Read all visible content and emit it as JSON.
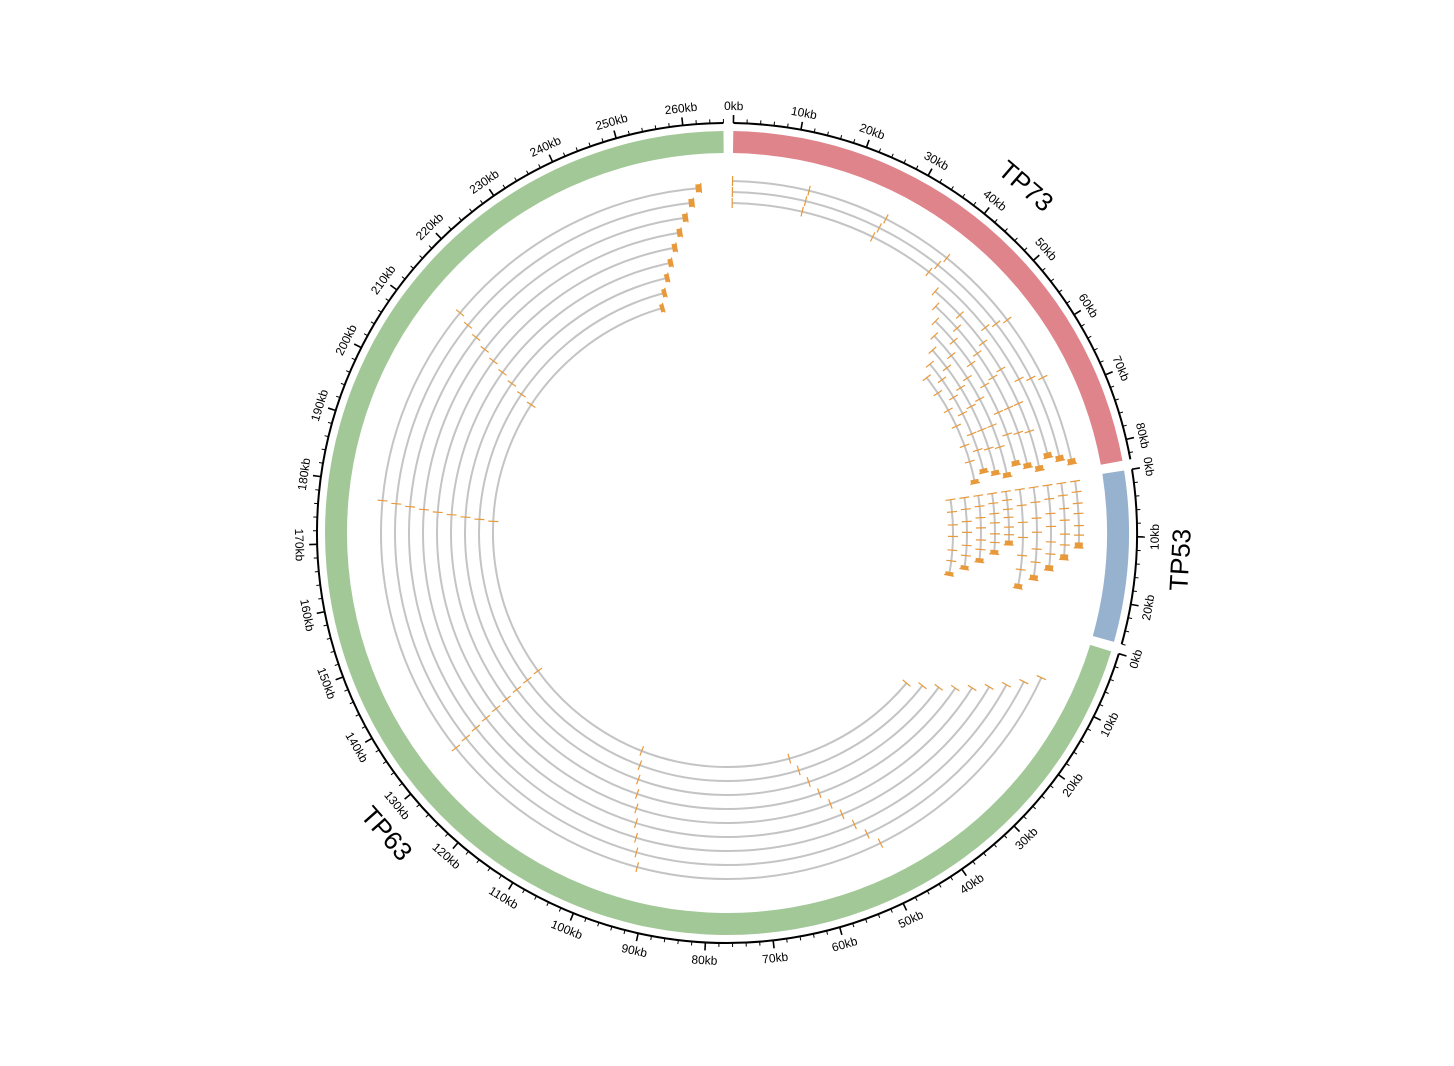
{
  "diagram": {
    "type": "circos",
    "tick_unit": "kb",
    "tick_label_step_kb": 10,
    "colors": {
      "transcript_line": "#c4c4c4",
      "exon": "#e8993a",
      "axis": "#000000"
    },
    "chromosomes": [
      {
        "name": "TP73",
        "length_kb": 83,
        "color": "#df848b",
        "label_tick_max": 80
      },
      {
        "name": "TP53",
        "length_kb": 26,
        "color": "#97b2cf",
        "label_tick_max": 20
      },
      {
        "name": "TP63",
        "length_kb": 266,
        "color": "#a3c898",
        "label_tick_max": 260
      }
    ]
  }
}
